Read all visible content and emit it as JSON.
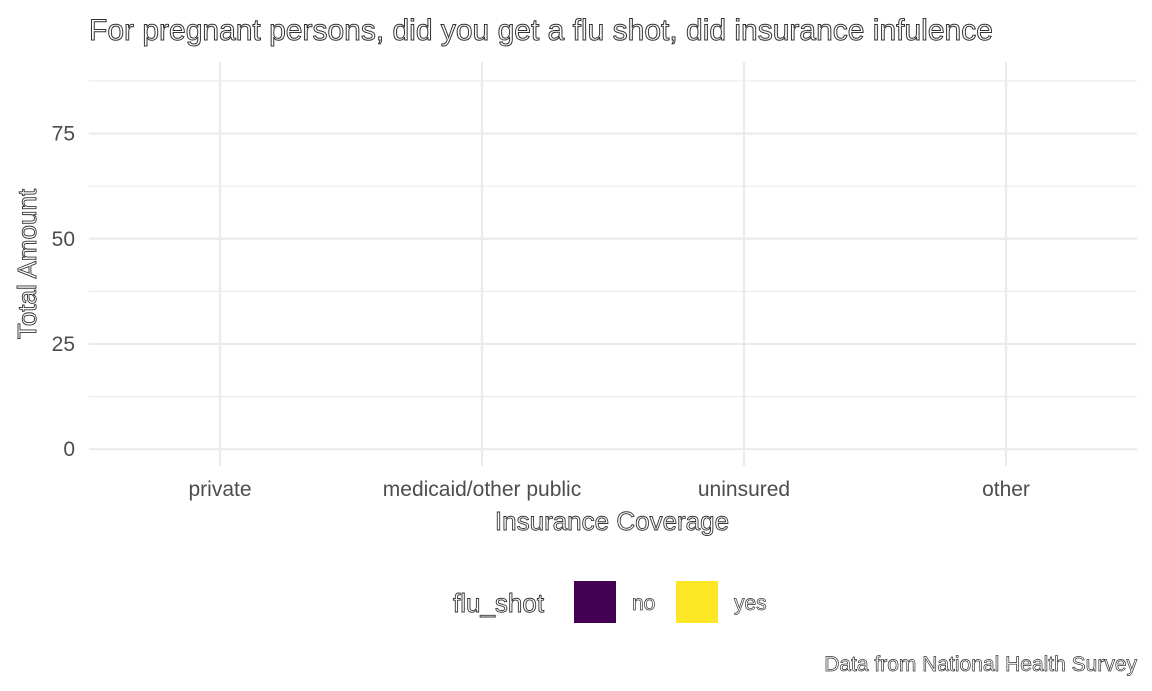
{
  "chart_data": {
    "type": "bar",
    "title": "For pregnant persons, did you get a flu shot, did insurance infulence",
    "xlabel": "Insurance Coverage",
    "ylabel": "Total Amount",
    "categories": [
      "private",
      "medicaid/other public",
      "uninsured",
      "other"
    ],
    "y_ticks": [
      "0",
      "25",
      "50",
      "75"
    ],
    "ylim": [
      -4,
      92
    ],
    "grid": true,
    "legend": {
      "title": "flu_shot",
      "placement": "bottom",
      "items": [
        {
          "label": "no",
          "color": "#440154"
        },
        {
          "label": "yes",
          "color": "#FDE725"
        }
      ]
    },
    "series": [],
    "caption": "Data from National Health Survey"
  }
}
